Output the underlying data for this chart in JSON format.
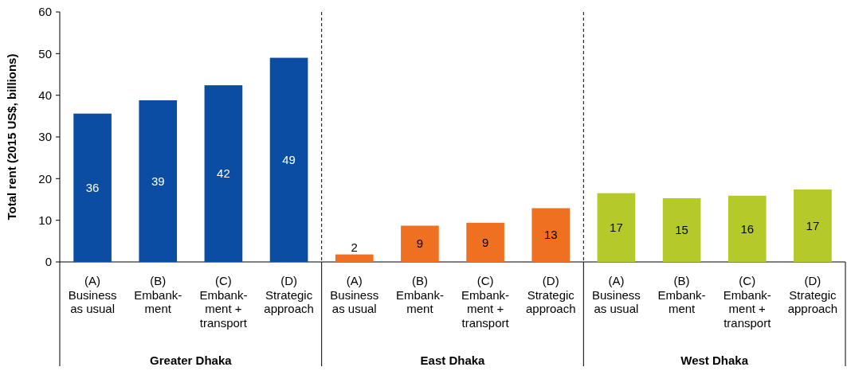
{
  "chart_data": [
    {
      "type": "bar",
      "xlabel": "Greater Dhaka",
      "ylabel": "Total rent (2015 US$, billions)",
      "categories": [
        "(A)\nBusiness\nas usual",
        "(B)\nEmbank-\nment",
        "(C)\nEmbank-\nment +\ntransport",
        "(D)\nStrategic\napproach"
      ],
      "values": [
        35.6,
        38.8,
        42.4,
        49
      ],
      "value_labels": [
        "36",
        "39",
        "42",
        "49"
      ],
      "color": "#0a4da2",
      "ylim": [
        0,
        60
      ],
      "yticks": [
        0,
        10,
        20,
        30,
        40,
        50,
        60
      ],
      "grid": false
    },
    {
      "type": "bar",
      "xlabel": "East Dhaka",
      "categories": [
        "(A)\nBusiness\nas usual",
        "(B)\nEmbank-\nment",
        "(C)\nEmbank-\nment +\ntransport",
        "(D)\nStrategic\napproach"
      ],
      "values": [
        1.8,
        8.7,
        9.4,
        12.9
      ],
      "value_labels": [
        "2",
        "9",
        "9",
        "13"
      ],
      "color": "#f07022",
      "ylim": [
        0,
        60
      ],
      "tick_labels": "x",
      "grid": false
    },
    {
      "type": "bar",
      "xlabel": "West Dhaka",
      "categories": [
        "(A)\nBusiness\nas usual",
        "(B)\nEmbank-\nment",
        "(C)\nEmbank-\nment +\ntransport",
        "(D)\nStrategic\napproach"
      ],
      "values": [
        16.5,
        15.3,
        15.9,
        17.4
      ],
      "value_labels": [
        "17",
        "15",
        "16",
        "17"
      ],
      "color": "#b5c92a",
      "ylim": [
        0,
        60
      ],
      "tick_labels": "x",
      "grid": false
    }
  ]
}
